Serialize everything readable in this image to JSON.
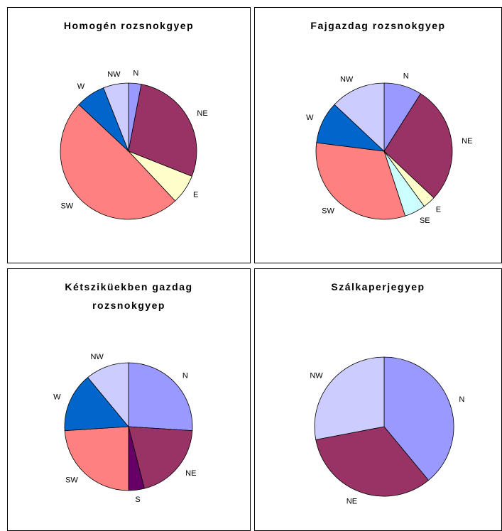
{
  "chart_data": [
    {
      "type": "pie",
      "title": "Homogén rozsnokgyep",
      "categories": [
        "N",
        "NE",
        "E",
        "SW",
        "W",
        "NW"
      ],
      "values": [
        3,
        28,
        7,
        49,
        7,
        6
      ],
      "colors": [
        "#9999ff",
        "#993366",
        "#ffffcc",
        "#ff8080",
        "#0066cc",
        "#ccccff"
      ]
    },
    {
      "type": "pie",
      "title": "Fajgazdag rozsnokgyep",
      "categories": [
        "N",
        "NE",
        "E",
        "SE",
        "SW",
        "W",
        "NW"
      ],
      "values": [
        9,
        28,
        3,
        5,
        32,
        10,
        13
      ],
      "colors": [
        "#9999ff",
        "#993366",
        "#ffffcc",
        "#ccffff",
        "#ff8080",
        "#0066cc",
        "#ccccff"
      ]
    },
    {
      "type": "pie",
      "title": "Kétsziküekben gazdag rozsnokgyep",
      "categories": [
        "N",
        "NE",
        "S",
        "SW",
        "W",
        "NW"
      ],
      "values": [
        26,
        20,
        4,
        24,
        15,
        11
      ],
      "colors": [
        "#9999ff",
        "#993366",
        "#660066",
        "#ff8080",
        "#0066cc",
        "#ccccff"
      ]
    },
    {
      "type": "pie",
      "title": "Szálkaperjegyep",
      "categories": [
        "N",
        "NE",
        "NW"
      ],
      "values": [
        39,
        33,
        28
      ],
      "colors": [
        "#9999ff",
        "#993366",
        "#ccccff"
      ]
    }
  ]
}
